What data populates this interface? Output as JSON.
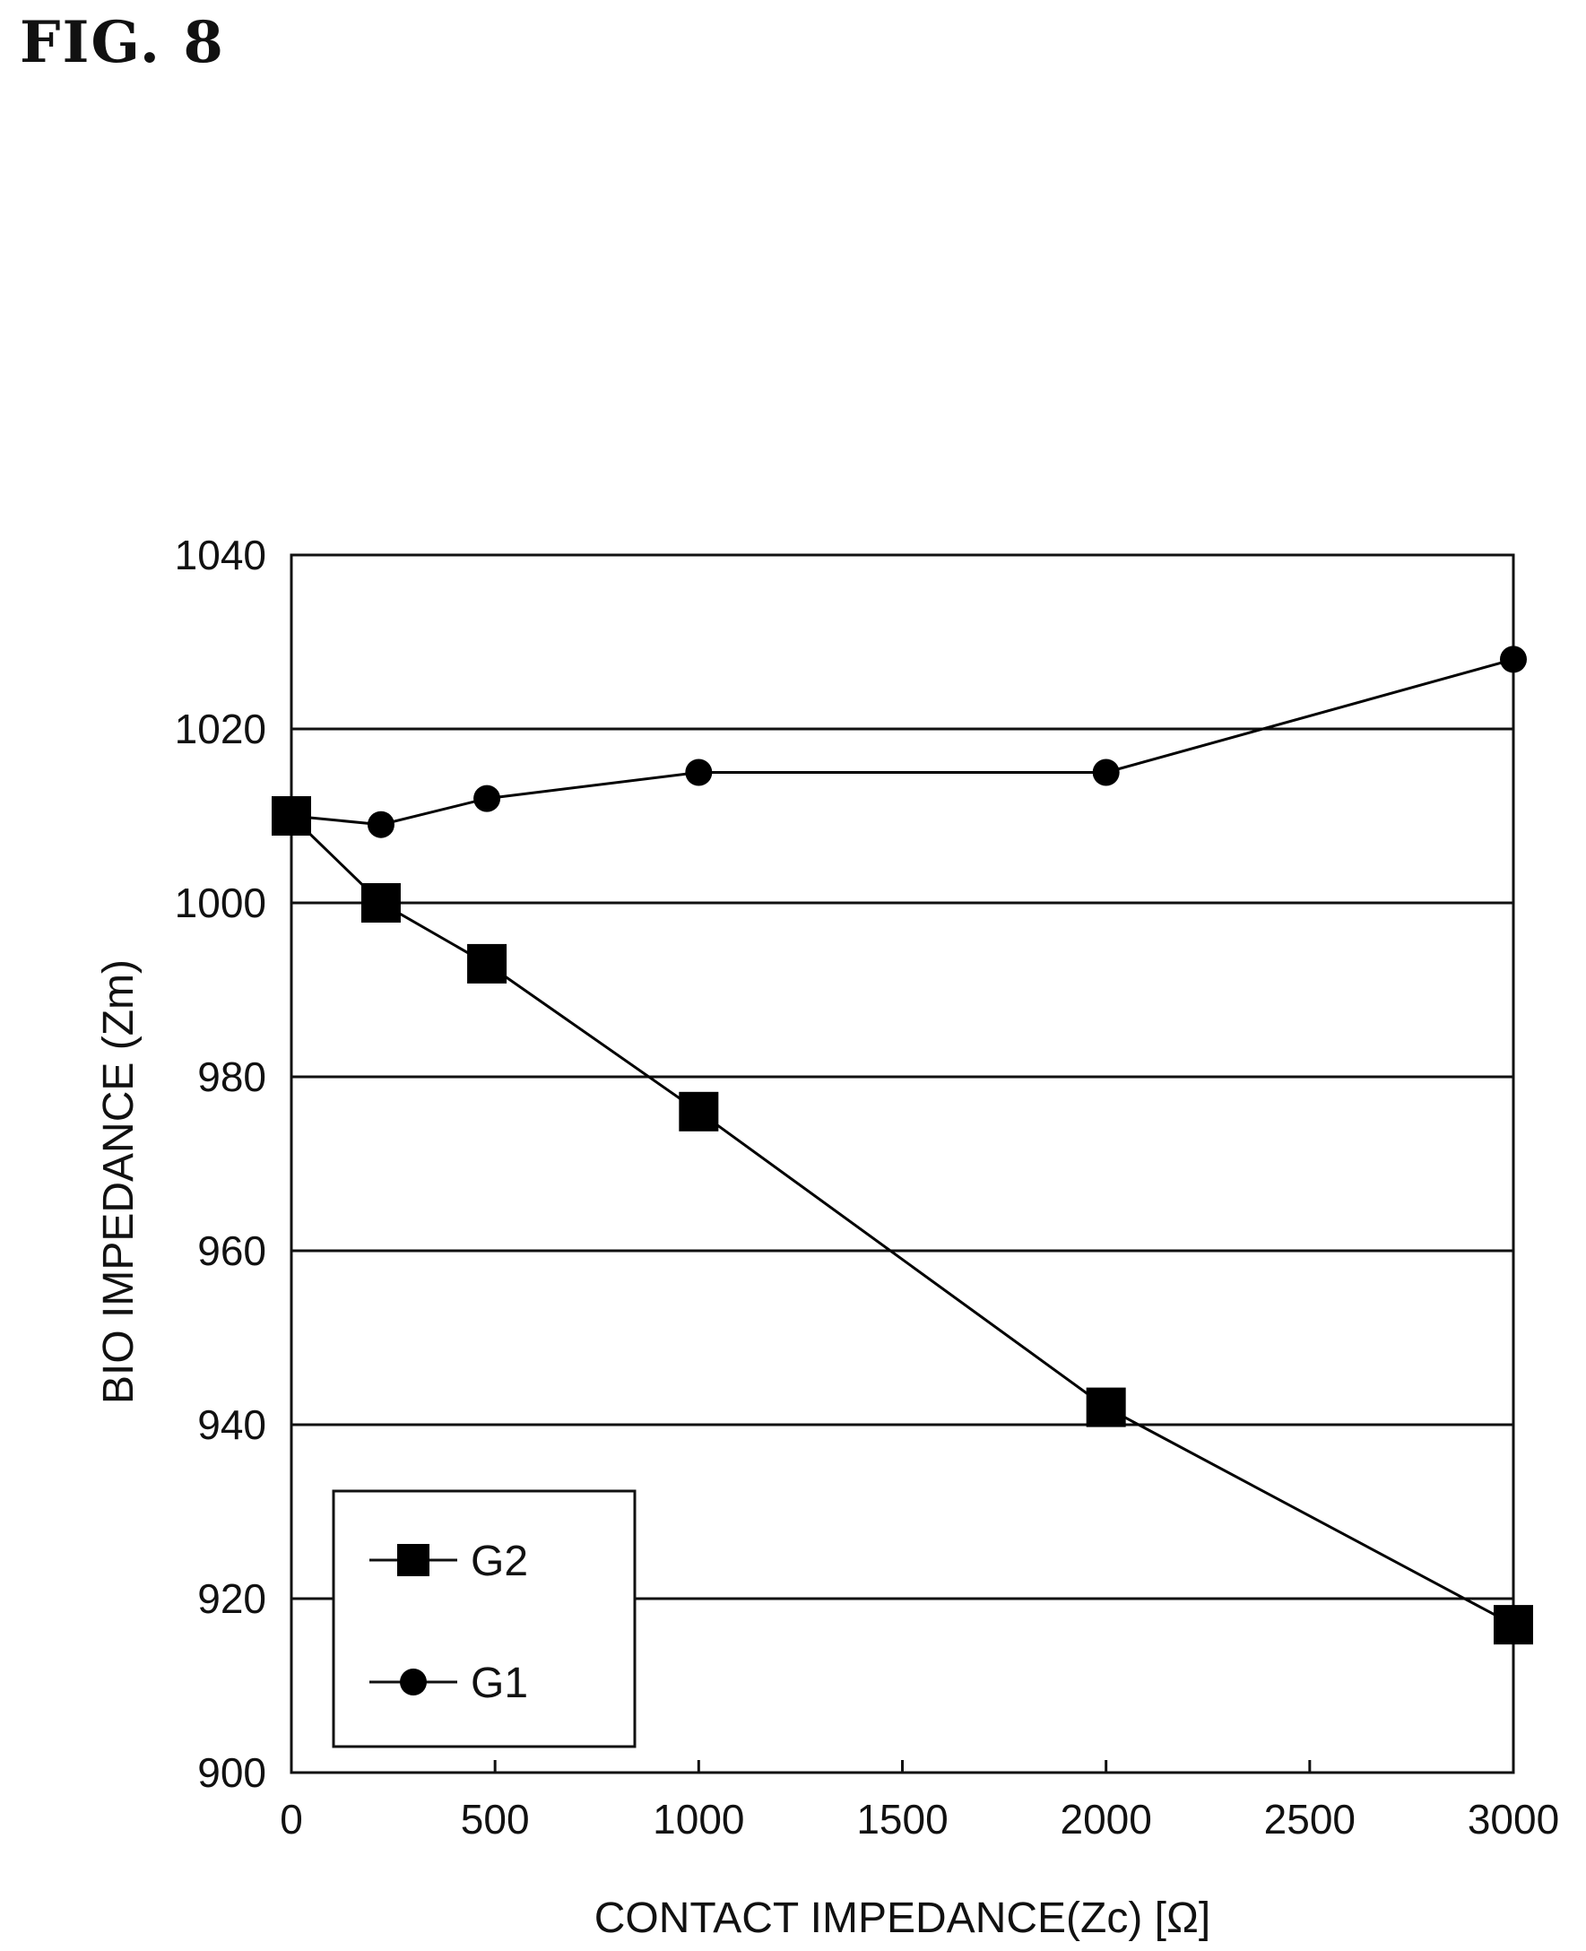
{
  "figure_label": "FIG. 8",
  "chart_data": {
    "type": "line",
    "xlabel": "CONTACT IMPEDANCE(Zc) [Ω]",
    "ylabel": "BIO IMPEDANCE (Zm)",
    "xlim": [
      0,
      3000
    ],
    "ylim": [
      900,
      1040
    ],
    "xticks": [
      0,
      500,
      1000,
      1500,
      2000,
      2500,
      3000
    ],
    "yticks": [
      900,
      920,
      940,
      960,
      980,
      1000,
      1020,
      1040
    ],
    "grid": "horizontal",
    "legend_position": "bottom-left",
    "series": [
      {
        "name": "G2",
        "marker": "square",
        "color": "#000000",
        "x": [
          0,
          220,
          480,
          1000,
          2000,
          3000
        ],
        "y": [
          1010,
          1000,
          993,
          976,
          942,
          917
        ]
      },
      {
        "name": "G1",
        "marker": "circle",
        "color": "#000000",
        "x": [
          0,
          220,
          480,
          1000,
          2000,
          3000
        ],
        "y": [
          1010,
          1009,
          1012,
          1015,
          1015,
          1028
        ]
      }
    ]
  }
}
